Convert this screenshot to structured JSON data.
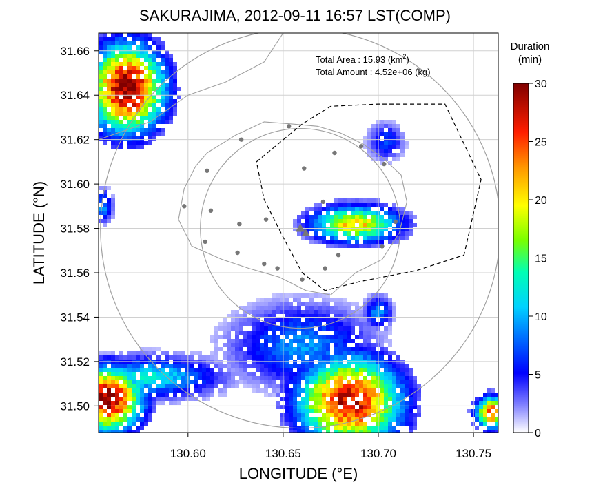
{
  "chart_data": {
    "type": "heatmap",
    "title": "SAKURAJIMA, 2012-09-11 16:57 LST(COMP)",
    "xlabel": "LONGITUDE (°E)",
    "ylabel": "LATITUDE (°N)",
    "xlim": [
      130.553,
      130.763
    ],
    "ylim": [
      31.488,
      31.668
    ],
    "x_ticks": [
      130.6,
      130.65,
      130.7,
      130.75
    ],
    "x_tick_labels": [
      "130.60",
      "130.65",
      "130.70",
      "130.75"
    ],
    "y_ticks": [
      31.5,
      31.52,
      31.54,
      31.56,
      31.58,
      31.6,
      31.62,
      31.64,
      31.66
    ],
    "y_tick_labels": [
      "31.50",
      "31.52",
      "31.54",
      "31.56",
      "31.58",
      "31.60",
      "31.62",
      "31.64",
      "31.66"
    ],
    "grid": true,
    "annotations": {
      "area_label": "Total Area   : 15.93 (km",
      "area_sup": "2",
      "area_close": ")",
      "amount_label": "Total Amount : 4.52e+06 (kg)"
    },
    "colorbar": {
      "title_line1": "Duration",
      "title_line2": "(min)",
      "min": 0,
      "max": 30,
      "ticks": [
        0,
        5,
        10,
        15,
        20,
        25,
        30
      ],
      "tick_labels": [
        "0",
        "5",
        "10",
        "15",
        "20",
        "25",
        "30"
      ],
      "colors": [
        "#ffffff",
        "#5a5aff",
        "#0000ff",
        "#00b4ff",
        "#00ffb4",
        "#b4ff00",
        "#ffff00",
        "#ff7800",
        "#ff0000",
        "#800000"
      ]
    },
    "duration_patches": [
      {
        "region": "NW corner",
        "lon": 130.568,
        "lat": 31.643,
        "peak_min": 30,
        "rlon": 0.022,
        "rlat": 0.022
      },
      {
        "region": "east of vent plume",
        "lon": 130.688,
        "lat": 31.582,
        "peak_min": 21,
        "rlon": 0.026,
        "rlat": 0.009
      },
      {
        "region": "NE small cell",
        "lon": 130.704,
        "lat": 31.619,
        "peak_min": 7,
        "rlon": 0.01,
        "rlat": 0.009
      },
      {
        "region": "SW corner",
        "lon": 130.558,
        "lat": 31.503,
        "peak_min": 30,
        "rlon": 0.02,
        "rlat": 0.016
      },
      {
        "region": "south fan",
        "lon": 130.685,
        "lat": 31.502,
        "peak_min": 28,
        "rlon": 0.03,
        "rlat": 0.022
      },
      {
        "region": "west band",
        "lon": 130.58,
        "lat": 31.513,
        "peak_min": 12,
        "rlon": 0.04,
        "rlat": 0.01
      },
      {
        "region": "south-central scatter",
        "lon": 130.66,
        "lat": 31.527,
        "peak_min": 9,
        "rlon": 0.04,
        "rlat": 0.02
      },
      {
        "region": "SE cell",
        "lon": 130.7,
        "lat": 31.542,
        "peak_min": 9,
        "rlon": 0.008,
        "rlat": 0.008
      },
      {
        "region": "W edge",
        "lon": 130.555,
        "lat": 31.59,
        "peak_min": 9,
        "rlon": 0.006,
        "rlat": 0.008
      },
      {
        "region": "E edge",
        "lon": 130.76,
        "lat": 31.497,
        "peak_min": 25,
        "rlon": 0.01,
        "rlat": 0.008
      }
    ],
    "vent_lon": 130.659,
    "vent_lat": 31.58,
    "station_points": [
      [
        130.628,
        31.62
      ],
      [
        130.653,
        31.626
      ],
      [
        130.661,
        31.607
      ],
      [
        130.677,
        31.614
      ],
      [
        130.691,
        31.617
      ],
      [
        130.703,
        31.609
      ],
      [
        130.671,
        31.592
      ],
      [
        130.61,
        31.606
      ],
      [
        130.598,
        31.59
      ],
      [
        130.612,
        31.588
      ],
      [
        130.627,
        31.582
      ],
      [
        130.641,
        31.584
      ],
      [
        130.609,
        31.574
      ],
      [
        130.626,
        31.569
      ],
      [
        130.679,
        31.568
      ],
      [
        130.702,
        31.572
      ],
      [
        130.709,
        31.583
      ],
      [
        130.64,
        31.564
      ],
      [
        130.647,
        31.562
      ],
      [
        130.66,
        31.557
      ],
      [
        130.672,
        31.562
      ]
    ],
    "coastline_outer": [
      [
        130.553,
        31.62
      ],
      [
        130.58,
        31.628
      ],
      [
        130.6,
        31.64
      ],
      [
        130.62,
        31.646
      ],
      [
        130.64,
        31.655
      ],
      [
        130.65,
        31.668
      ]
    ]
  }
}
